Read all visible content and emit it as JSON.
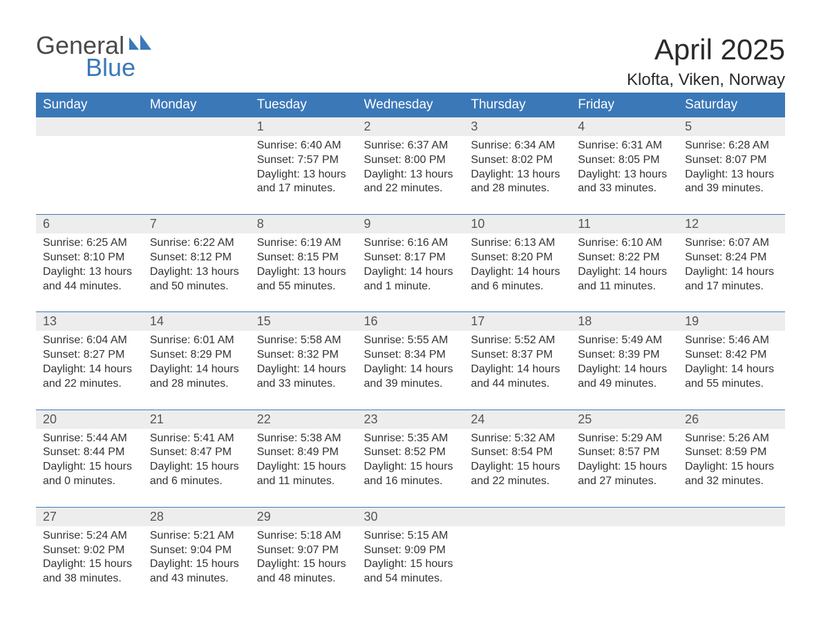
{
  "logo": {
    "text_general": "General",
    "text_blue": "Blue",
    "shape_color": "#3b78b8",
    "text_color_dark": "#4a4a4a"
  },
  "title": "April 2025",
  "subtitle": "Klofta, Viken, Norway",
  "colors": {
    "header_bg": "#3b78b8",
    "header_text": "#ffffff",
    "daynum_bg": "#ededed",
    "daynum_text": "#555555",
    "body_text": "#333333",
    "rule": "#3b78b8",
    "page_bg": "#ffffff"
  },
  "typography": {
    "title_fontsize": 42,
    "subtitle_fontsize": 24,
    "header_fontsize": 19,
    "daynum_fontsize": 18,
    "cell_fontsize": 16,
    "font_family": "Arial"
  },
  "day_headers": [
    "Sunday",
    "Monday",
    "Tuesday",
    "Wednesday",
    "Thursday",
    "Friday",
    "Saturday"
  ],
  "weeks": [
    [
      null,
      null,
      {
        "n": "1",
        "sunrise": "Sunrise: 6:40 AM",
        "sunset": "Sunset: 7:57 PM",
        "day1": "Daylight: 13 hours",
        "day2": "and 17 minutes."
      },
      {
        "n": "2",
        "sunrise": "Sunrise: 6:37 AM",
        "sunset": "Sunset: 8:00 PM",
        "day1": "Daylight: 13 hours",
        "day2": "and 22 minutes."
      },
      {
        "n": "3",
        "sunrise": "Sunrise: 6:34 AM",
        "sunset": "Sunset: 8:02 PM",
        "day1": "Daylight: 13 hours",
        "day2": "and 28 minutes."
      },
      {
        "n": "4",
        "sunrise": "Sunrise: 6:31 AM",
        "sunset": "Sunset: 8:05 PM",
        "day1": "Daylight: 13 hours",
        "day2": "and 33 minutes."
      },
      {
        "n": "5",
        "sunrise": "Sunrise: 6:28 AM",
        "sunset": "Sunset: 8:07 PM",
        "day1": "Daylight: 13 hours",
        "day2": "and 39 minutes."
      }
    ],
    [
      {
        "n": "6",
        "sunrise": "Sunrise: 6:25 AM",
        "sunset": "Sunset: 8:10 PM",
        "day1": "Daylight: 13 hours",
        "day2": "and 44 minutes."
      },
      {
        "n": "7",
        "sunrise": "Sunrise: 6:22 AM",
        "sunset": "Sunset: 8:12 PM",
        "day1": "Daylight: 13 hours",
        "day2": "and 50 minutes."
      },
      {
        "n": "8",
        "sunrise": "Sunrise: 6:19 AM",
        "sunset": "Sunset: 8:15 PM",
        "day1": "Daylight: 13 hours",
        "day2": "and 55 minutes."
      },
      {
        "n": "9",
        "sunrise": "Sunrise: 6:16 AM",
        "sunset": "Sunset: 8:17 PM",
        "day1": "Daylight: 14 hours",
        "day2": "and 1 minute."
      },
      {
        "n": "10",
        "sunrise": "Sunrise: 6:13 AM",
        "sunset": "Sunset: 8:20 PM",
        "day1": "Daylight: 14 hours",
        "day2": "and 6 minutes."
      },
      {
        "n": "11",
        "sunrise": "Sunrise: 6:10 AM",
        "sunset": "Sunset: 8:22 PM",
        "day1": "Daylight: 14 hours",
        "day2": "and 11 minutes."
      },
      {
        "n": "12",
        "sunrise": "Sunrise: 6:07 AM",
        "sunset": "Sunset: 8:24 PM",
        "day1": "Daylight: 14 hours",
        "day2": "and 17 minutes."
      }
    ],
    [
      {
        "n": "13",
        "sunrise": "Sunrise: 6:04 AM",
        "sunset": "Sunset: 8:27 PM",
        "day1": "Daylight: 14 hours",
        "day2": "and 22 minutes."
      },
      {
        "n": "14",
        "sunrise": "Sunrise: 6:01 AM",
        "sunset": "Sunset: 8:29 PM",
        "day1": "Daylight: 14 hours",
        "day2": "and 28 minutes."
      },
      {
        "n": "15",
        "sunrise": "Sunrise: 5:58 AM",
        "sunset": "Sunset: 8:32 PM",
        "day1": "Daylight: 14 hours",
        "day2": "and 33 minutes."
      },
      {
        "n": "16",
        "sunrise": "Sunrise: 5:55 AM",
        "sunset": "Sunset: 8:34 PM",
        "day1": "Daylight: 14 hours",
        "day2": "and 39 minutes."
      },
      {
        "n": "17",
        "sunrise": "Sunrise: 5:52 AM",
        "sunset": "Sunset: 8:37 PM",
        "day1": "Daylight: 14 hours",
        "day2": "and 44 minutes."
      },
      {
        "n": "18",
        "sunrise": "Sunrise: 5:49 AM",
        "sunset": "Sunset: 8:39 PM",
        "day1": "Daylight: 14 hours",
        "day2": "and 49 minutes."
      },
      {
        "n": "19",
        "sunrise": "Sunrise: 5:46 AM",
        "sunset": "Sunset: 8:42 PM",
        "day1": "Daylight: 14 hours",
        "day2": "and 55 minutes."
      }
    ],
    [
      {
        "n": "20",
        "sunrise": "Sunrise: 5:44 AM",
        "sunset": "Sunset: 8:44 PM",
        "day1": "Daylight: 15 hours",
        "day2": "and 0 minutes."
      },
      {
        "n": "21",
        "sunrise": "Sunrise: 5:41 AM",
        "sunset": "Sunset: 8:47 PM",
        "day1": "Daylight: 15 hours",
        "day2": "and 6 minutes."
      },
      {
        "n": "22",
        "sunrise": "Sunrise: 5:38 AM",
        "sunset": "Sunset: 8:49 PM",
        "day1": "Daylight: 15 hours",
        "day2": "and 11 minutes."
      },
      {
        "n": "23",
        "sunrise": "Sunrise: 5:35 AM",
        "sunset": "Sunset: 8:52 PM",
        "day1": "Daylight: 15 hours",
        "day2": "and 16 minutes."
      },
      {
        "n": "24",
        "sunrise": "Sunrise: 5:32 AM",
        "sunset": "Sunset: 8:54 PM",
        "day1": "Daylight: 15 hours",
        "day2": "and 22 minutes."
      },
      {
        "n": "25",
        "sunrise": "Sunrise: 5:29 AM",
        "sunset": "Sunset: 8:57 PM",
        "day1": "Daylight: 15 hours",
        "day2": "and 27 minutes."
      },
      {
        "n": "26",
        "sunrise": "Sunrise: 5:26 AM",
        "sunset": "Sunset: 8:59 PM",
        "day1": "Daylight: 15 hours",
        "day2": "and 32 minutes."
      }
    ],
    [
      {
        "n": "27",
        "sunrise": "Sunrise: 5:24 AM",
        "sunset": "Sunset: 9:02 PM",
        "day1": "Daylight: 15 hours",
        "day2": "and 38 minutes."
      },
      {
        "n": "28",
        "sunrise": "Sunrise: 5:21 AM",
        "sunset": "Sunset: 9:04 PM",
        "day1": "Daylight: 15 hours",
        "day2": "and 43 minutes."
      },
      {
        "n": "29",
        "sunrise": "Sunrise: 5:18 AM",
        "sunset": "Sunset: 9:07 PM",
        "day1": "Daylight: 15 hours",
        "day2": "and 48 minutes."
      },
      {
        "n": "30",
        "sunrise": "Sunrise: 5:15 AM",
        "sunset": "Sunset: 9:09 PM",
        "day1": "Daylight: 15 hours",
        "day2": "and 54 minutes."
      },
      null,
      null,
      null
    ]
  ]
}
